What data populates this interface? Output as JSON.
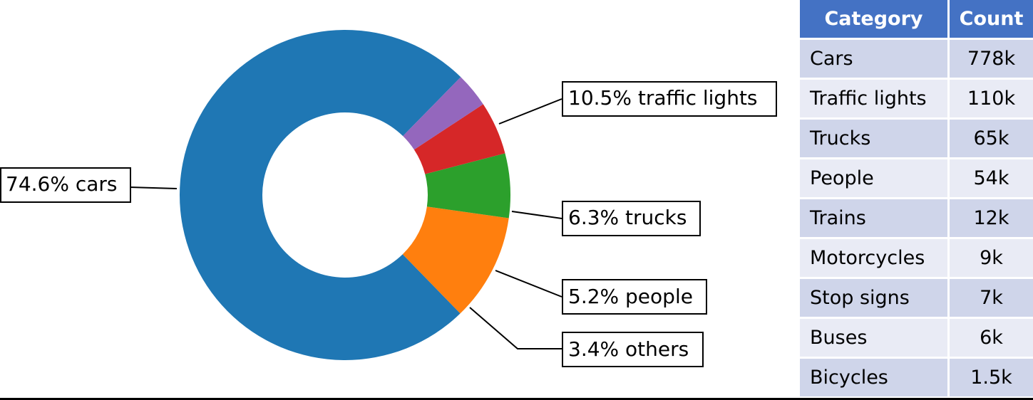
{
  "chart_data": [
    {
      "type": "pie",
      "donut": true,
      "title": "",
      "slices": [
        {
          "label": "74.6% cars",
          "category": "cars",
          "value": 74.6,
          "color": "#1f77b4"
        },
        {
          "label": "10.5% traffic lights",
          "category": "traffic lights",
          "value": 10.5,
          "color": "#ff7f0e"
        },
        {
          "label": "6.3% trucks",
          "category": "trucks",
          "value": 6.3,
          "color": "#2ca02c"
        },
        {
          "label": "5.2% people",
          "category": "people",
          "value": 5.2,
          "color": "#d62728"
        },
        {
          "label": "3.4% others",
          "category": "others",
          "value": 3.4,
          "color": "#9467bd"
        }
      ]
    },
    {
      "type": "table",
      "columns": [
        "Category",
        "Count"
      ],
      "rows": [
        [
          "Cars",
          "778k"
        ],
        [
          "Traffic lights",
          "110k"
        ],
        [
          "Trucks",
          "65k"
        ],
        [
          "People",
          "54k"
        ],
        [
          "Trains",
          "12k"
        ],
        [
          "Motorcycles",
          "9k"
        ],
        [
          "Stop signs",
          "7k"
        ],
        [
          "Buses",
          "6k"
        ],
        [
          "Bicycles",
          "1.5k"
        ]
      ],
      "header_color": "#4472c4",
      "row_colors": [
        "#cfd5ea",
        "#e9ebf5"
      ]
    }
  ]
}
